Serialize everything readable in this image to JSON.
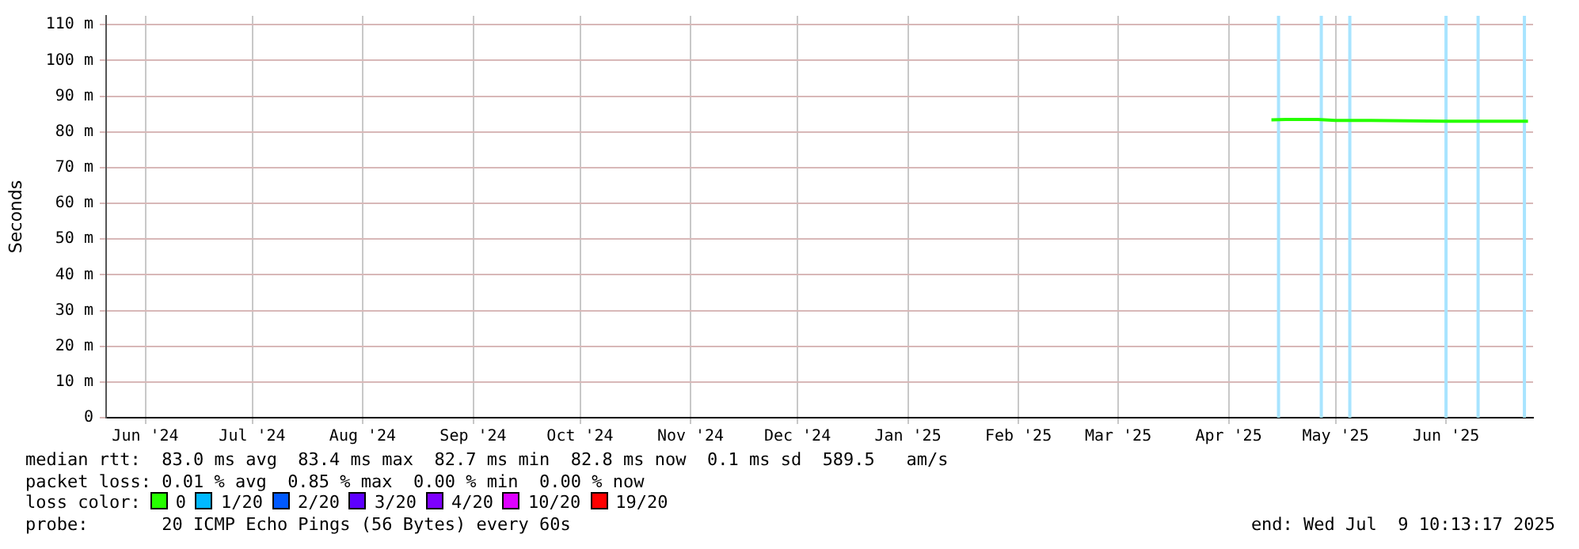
{
  "chart_data": {
    "type": "line",
    "ylabel": "Seconds",
    "xlim": [
      "2024-06-04",
      "2025-07-09T10:13"
    ],
    "xticks": [
      {
        "value": "2024-06-15",
        "label": "Jun '24"
      },
      {
        "value": "2024-07-15",
        "label": "Jul '24"
      },
      {
        "value": "2024-08-15",
        "label": "Aug '24"
      },
      {
        "value": "2024-09-15",
        "label": "Sep '24"
      },
      {
        "value": "2024-10-15",
        "label": "Oct '24"
      },
      {
        "value": "2024-11-15",
        "label": "Nov '24"
      },
      {
        "value": "2024-12-15",
        "label": "Dec '24"
      },
      {
        "value": "2025-01-15",
        "label": "Jan '25"
      },
      {
        "value": "2025-02-15",
        "label": "Feb '25"
      },
      {
        "value": "2025-03-15",
        "label": "Mar '25"
      },
      {
        "value": "2025-04-15",
        "label": "Apr '25"
      },
      {
        "value": "2025-05-15",
        "label": "May '25"
      },
      {
        "value": "2025-06-15",
        "label": "Jun '25"
      }
    ],
    "ylim": [
      0,
      112.5
    ],
    "yticks": [
      0,
      {
        "value": 10,
        "label": "10 m"
      },
      {
        "value": 20,
        "label": "20 m"
      },
      {
        "value": 30,
        "label": "30 m"
      },
      {
        "value": 40,
        "label": "40 m"
      },
      {
        "value": 50,
        "label": "50 m"
      },
      {
        "value": 60,
        "label": "60 m"
      },
      {
        "value": 70,
        "label": "70 m"
      },
      {
        "value": 80,
        "label": "80 m"
      },
      {
        "value": 90,
        "label": "90 m"
      },
      {
        "value": 100,
        "label": "100 m"
      },
      {
        "value": 110,
        "label": "110 m"
      }
    ],
    "grid": true,
    "legend": "bottom",
    "legend_title": "loss color:",
    "marker": "none",
    "series": [
      {
        "name": "0",
        "color": "#26ff00",
        "x": [
          "2025-04-27",
          "2025-05-01",
          "2025-05-10",
          "2025-05-15",
          "2025-05-25",
          "2025-06-05",
          "2025-06-15",
          "2025-06-25",
          "2025-07-08"
        ],
        "values": [
          83.4,
          83.5,
          83.5,
          83.2,
          83.2,
          83.1,
          83.0,
          83.0,
          83.0
        ]
      },
      {
        "name": "1/20",
        "color": "#00b8ff"
      },
      {
        "name": "2/20",
        "color": "#0059ff"
      },
      {
        "name": "3/20",
        "color": "#5e00ff"
      },
      {
        "name": "4/20",
        "color": "#7e00ff"
      },
      {
        "name": "10/20",
        "color": "#dd00ff"
      },
      {
        "name": "19/20",
        "color": "#ff0000"
      }
    ],
    "ref_lines": [
      {
        "axis": "x",
        "value": "2025-04-29",
        "label": null,
        "color": "#a8e4ff"
      },
      {
        "axis": "x",
        "value": "2025-05-11",
        "label": null,
        "color": "#a8e4ff"
      },
      {
        "axis": "x",
        "value": "2025-05-19",
        "label": null,
        "color": "#a8e4ff"
      },
      {
        "axis": "x",
        "value": "2025-06-15",
        "label": null,
        "color": "#a8e4ff"
      },
      {
        "axis": "x",
        "value": "2025-06-24",
        "label": null,
        "color": "#a8e4ff"
      },
      {
        "axis": "x",
        "value": "2025-07-07",
        "label": null,
        "color": "#a8e4ff"
      }
    ],
    "annotations": [
      "median rtt:  83.0 ms avg  83.4 ms max  82.7 ms min  82.8 ms now  0.1 ms sd  589.5   am/s",
      "packet loss: 0.01 % avg  0.85 % max  0.00 % min  0.00 % now",
      "probe:       20 ICMP Echo Pings (56 Bytes) every 60s",
      "end: Wed Jul  9 10:13:17 2025"
    ]
  }
}
